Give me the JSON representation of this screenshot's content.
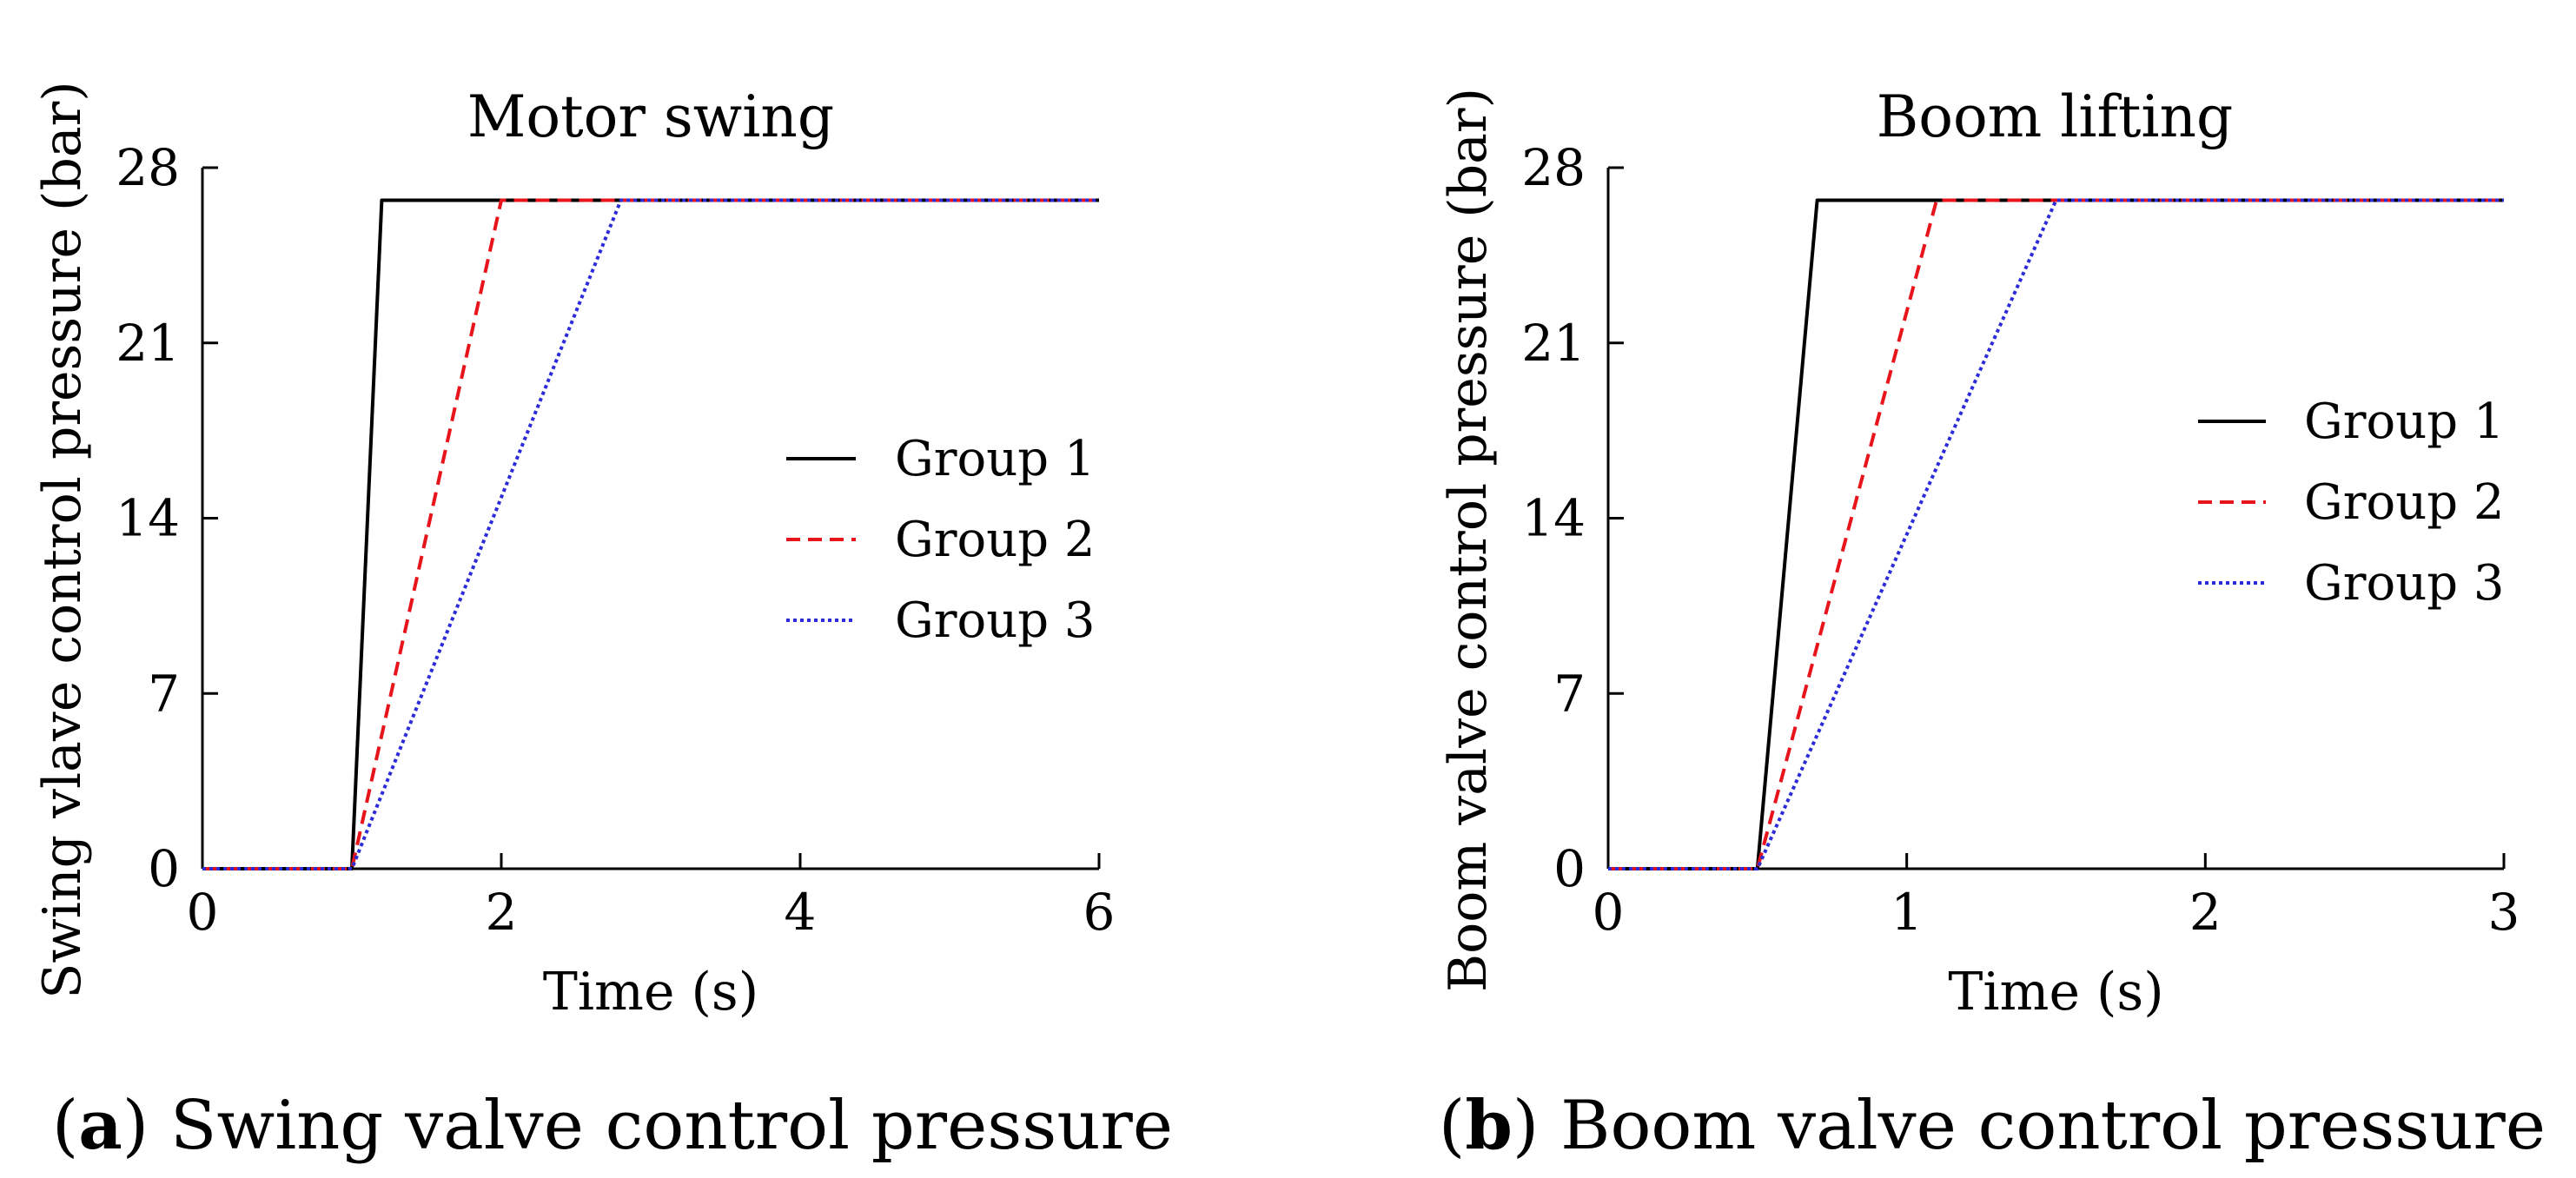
{
  "chart_data": [
    {
      "type": "line",
      "id": "a",
      "title": "Motor swing",
      "xlabel": "Time (s)",
      "ylabel": "Swing vlave control pressure (bar)",
      "xlim": [
        0,
        6
      ],
      "ylim": [
        0,
        28
      ],
      "xticks": [
        0,
        2,
        4,
        6
      ],
      "yticks": [
        0,
        7,
        14,
        21,
        28
      ],
      "legend_position": "center-right",
      "caption_letter": "a",
      "caption_text": " Swing valve control pressure",
      "series": [
        {
          "name": "Group 1",
          "color": "#000000",
          "style": "solid",
          "x": [
            0,
            1.0,
            1.2,
            6
          ],
          "y": [
            0,
            0,
            26.7,
            26.7
          ]
        },
        {
          "name": "Group 2",
          "color": "#e8141b",
          "style": "dashed",
          "x": [
            0,
            1.0,
            2.0,
            6
          ],
          "y": [
            0,
            0,
            26.7,
            26.7
          ]
        },
        {
          "name": "Group 3",
          "color": "#2b2bd9",
          "style": "dotted",
          "x": [
            0,
            1.0,
            2.8,
            6
          ],
          "y": [
            0,
            0,
            26.7,
            26.7
          ]
        }
      ]
    },
    {
      "type": "line",
      "id": "b",
      "title": "Boom lifting",
      "xlabel": "Time (s)",
      "ylabel": "Boom valve control pressure (bar)",
      "xlim": [
        0,
        3
      ],
      "ylim": [
        0,
        28
      ],
      "xticks": [
        0,
        1,
        2,
        3
      ],
      "yticks": [
        0,
        7,
        14,
        21,
        28
      ],
      "legend_position": "upper-right",
      "caption_letter": "b",
      "caption_text": " Boom valve control pressure",
      "series": [
        {
          "name": "Group 1",
          "color": "#000000",
          "style": "solid",
          "x": [
            0,
            0.5,
            0.7,
            3
          ],
          "y": [
            0,
            0,
            26.7,
            26.7
          ]
        },
        {
          "name": "Group 2",
          "color": "#e8141b",
          "style": "dashed",
          "x": [
            0,
            0.5,
            1.1,
            3
          ],
          "y": [
            0,
            0,
            26.7,
            26.7
          ]
        },
        {
          "name": "Group 3",
          "color": "#2b2bd9",
          "style": "dotted",
          "x": [
            0,
            0.5,
            1.5,
            3
          ],
          "y": [
            0,
            0,
            26.7,
            26.7
          ]
        }
      ]
    }
  ]
}
